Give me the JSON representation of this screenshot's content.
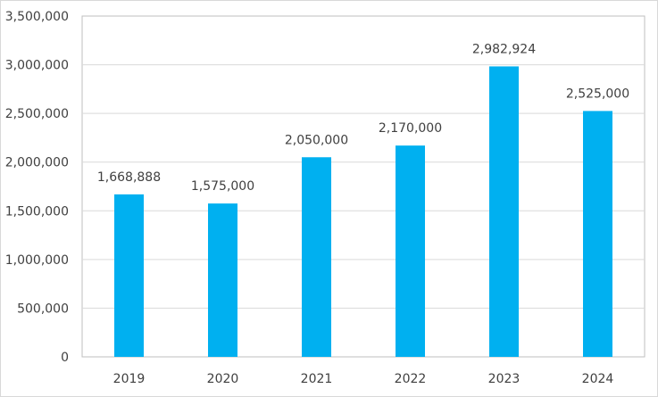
{
  "chart_data": {
    "type": "bar",
    "categories": [
      "2019",
      "2020",
      "2021",
      "2022",
      "2023",
      "2024"
    ],
    "series": [
      {
        "values": [
          1668888,
          1575000,
          2050000,
          2170000,
          2982924,
          2525000
        ],
        "labels": [
          "1,668,888",
          "1,575,000",
          "2,050,000",
          "2,170,000",
          "2,982,924",
          "2,525,000"
        ],
        "color": "#00b0f0"
      }
    ],
    "y_ticks": [
      {
        "value": 0,
        "label": "0"
      },
      {
        "value": 500000,
        "label": "500,000"
      },
      {
        "value": 1000000,
        "label": "1,000,000"
      },
      {
        "value": 1500000,
        "label": "1,500,000"
      },
      {
        "value": 2000000,
        "label": "2,000,000"
      },
      {
        "value": 2500000,
        "label": "2,500,000"
      },
      {
        "value": 3000000,
        "label": "3,000,000"
      },
      {
        "value": 3500000,
        "label": "3,500,000"
      }
    ],
    "ylim": [
      0,
      3500000
    ],
    "grid": true,
    "colors": {
      "bar": "#00b0f0",
      "grid": "#d9d9d9",
      "axis_text": "#404040",
      "plot_border": "#bfbfbf"
    }
  }
}
